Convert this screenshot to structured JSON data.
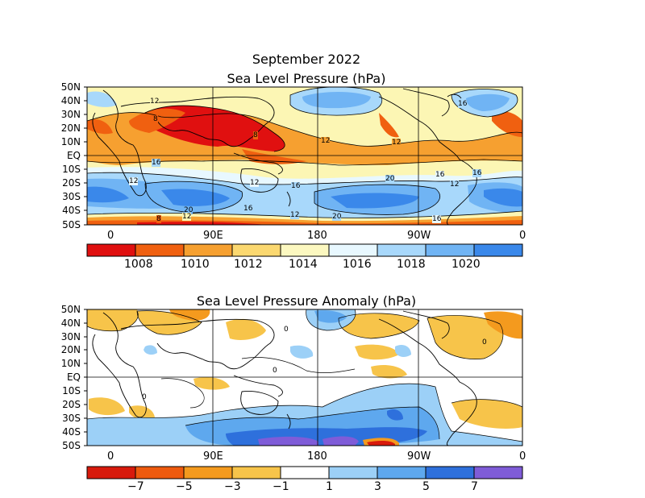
{
  "header": {
    "title": "September 2022",
    "slp_title": "Sea Level Pressure (hPa)",
    "anom_title": "Sea Level Pressure Anomaly (hPa)"
  },
  "axes": {
    "lat_labels": [
      "50N",
      "40N",
      "30N",
      "20N",
      "10N",
      "EQ",
      "10S",
      "20S",
      "30S",
      "40S",
      "50S"
    ],
    "lon_labels": [
      "0",
      "90E",
      "180",
      "90W",
      "0"
    ]
  },
  "slp_map": {
    "contour_labels": [
      "12",
      "8",
      "8",
      "12",
      "12",
      "16",
      "16",
      "12",
      "16",
      "12",
      "20",
      "16",
      "12",
      "20",
      "16",
      "8",
      "12",
      "20",
      "16",
      "12",
      "16"
    ],
    "colorbar": {
      "labels": [
        "1008",
        "1010",
        "1012",
        "1014",
        "1016",
        "1018",
        "1020"
      ],
      "colors": [
        "#e01010",
        "#f06010",
        "#f6a030",
        "#fbd870",
        "#fcf8c0",
        "#e8f8ff",
        "#a8d8fb",
        "#70b4f4",
        "#3a88ea"
      ]
    }
  },
  "anomaly_map": {
    "contour_labels": [
      "0",
      "0",
      "0",
      "0"
    ],
    "colorbar": {
      "labels": [
        "−7",
        "−5",
        "−3",
        "−1",
        "1",
        "3",
        "5",
        "7"
      ],
      "colors": [
        "#d81a0c",
        "#ee5a0e",
        "#f49a1e",
        "#f7c44a",
        "#ffffff",
        "#9cd0f7",
        "#5ea8ee",
        "#2e70dc",
        "#7f5cd8"
      ]
    }
  }
}
